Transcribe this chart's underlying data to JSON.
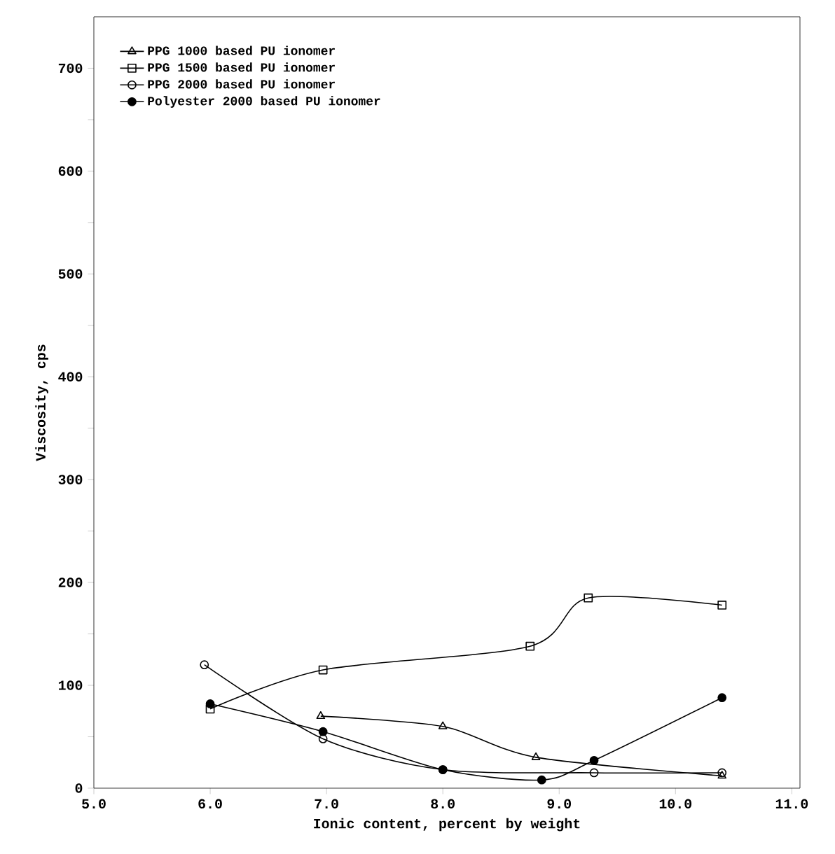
{
  "chart_data": {
    "type": "line",
    "xlabel": "Ionic content, percent by weight",
    "ylabel": "Viscosity, cps",
    "xlim": [
      5.0,
      11.07
    ],
    "ylim": [
      0,
      750
    ],
    "xticks": [
      {
        "value": 5,
        "label": "5.0"
      },
      {
        "value": 6,
        "label": "6.0"
      },
      {
        "value": 7,
        "label": "7.0"
      },
      {
        "value": 8,
        "label": "8.0"
      },
      {
        "value": 9,
        "label": "9.0"
      },
      {
        "value": 10,
        "label": "10.0"
      },
      {
        "value": 11,
        "label": "11.0"
      }
    ],
    "yticks": [
      0,
      {
        "value": 50,
        "label": null
      },
      100,
      {
        "value": 150,
        "label": null
      },
      200,
      {
        "value": 250,
        "label": null
      },
      300,
      {
        "value": 350,
        "label": null
      },
      400,
      {
        "value": 450,
        "label": null
      },
      500,
      {
        "value": 550,
        "label": null
      },
      600,
      {
        "value": 650,
        "label": null
      },
      700
    ],
    "legend": "top left",
    "grid": false,
    "series": [
      {
        "name": "PPG 1000 based PU ionomer",
        "color": "#000000",
        "marker": "triangle",
        "x": [
          6.95,
          8.0,
          8.8,
          10.4
        ],
        "values": [
          70,
          60,
          30,
          12
        ]
      },
      {
        "name": "PPG 1500 based PU ionomer",
        "color": "#000000",
        "marker": "square",
        "x": [
          6.0,
          6.97,
          8.75,
          9.25,
          10.4
        ],
        "values": [
          77,
          115,
          138,
          185,
          178
        ]
      },
      {
        "name": "PPG 2000 based PU ionomer",
        "color": "#000000",
        "marker": "circle",
        "x": [
          5.95,
          6.97,
          8.0,
          9.3,
          10.4
        ],
        "values": [
          120,
          48,
          18,
          15,
          15
        ]
      },
      {
        "name": "Polyester 2000 based PU ionomer",
        "color": "#000000",
        "marker": "filled circle",
        "x": [
          6.0,
          6.97,
          8.0,
          8.85,
          9.3,
          10.4
        ],
        "values": [
          82,
          55,
          18,
          8,
          27,
          88
        ]
      }
    ]
  }
}
